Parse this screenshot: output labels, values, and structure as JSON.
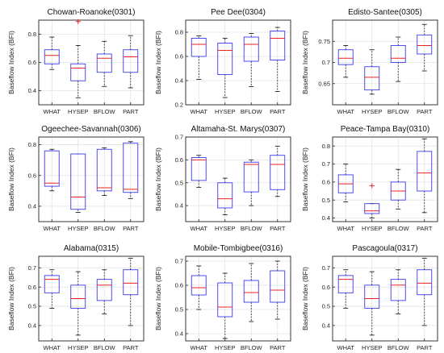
{
  "chart_data": [
    {
      "type": "box",
      "title": "Chowan-Roanoke(0301)",
      "ylabel": "Baseflow Index (BFI)",
      "categories": [
        "WHAT",
        "HYSEP",
        "BFLOW",
        "PART"
      ],
      "ylim": [
        0.3,
        0.9
      ],
      "yticks": [
        "0.4",
        "0.6",
        "0.8"
      ],
      "boxes": [
        {
          "min": 0.55,
          "q1": 0.59,
          "median": 0.65,
          "q3": 0.69,
          "max": 0.78,
          "outliers": []
        },
        {
          "min": 0.35,
          "q1": 0.47,
          "median": 0.56,
          "q3": 0.59,
          "max": 0.72,
          "outliers": [
            0.89
          ]
        },
        {
          "min": 0.43,
          "q1": 0.53,
          "median": 0.63,
          "q3": 0.66,
          "max": 0.75,
          "outliers": []
        },
        {
          "min": 0.42,
          "q1": 0.53,
          "median": 0.64,
          "q3": 0.69,
          "max": 0.79,
          "outliers": []
        }
      ]
    },
    {
      "type": "box",
      "title": "Pee Dee(0304)",
      "ylabel": "Baseflow Index (BFI)",
      "categories": [
        "WHAT",
        "HYSEP",
        "BFLOW",
        "PART"
      ],
      "ylim": [
        0.2,
        0.9
      ],
      "yticks": [
        "0.2",
        "0.4",
        "0.6",
        "0.8"
      ],
      "boxes": [
        {
          "min": 0.41,
          "q1": 0.6,
          "median": 0.7,
          "q3": 0.75,
          "max": 0.77,
          "outliers": []
        },
        {
          "min": 0.26,
          "q1": 0.45,
          "median": 0.65,
          "q3": 0.71,
          "max": 0.75,
          "outliers": []
        },
        {
          "min": 0.35,
          "q1": 0.56,
          "median": 0.7,
          "q3": 0.76,
          "max": 0.79,
          "outliers": []
        },
        {
          "min": 0.31,
          "q1": 0.57,
          "median": 0.75,
          "q3": 0.81,
          "max": 0.84,
          "outliers": []
        }
      ]
    },
    {
      "type": "box",
      "title": "Edisto-Santee(0305)",
      "ylabel": "Baseflow Index (BFI)",
      "categories": [
        "WHAT",
        "HYSEP",
        "BFLOW",
        "PART"
      ],
      "ylim": [
        0.6,
        0.8
      ],
      "yticks": [
        "0.65",
        "0.7",
        "0.75"
      ],
      "boxes": [
        {
          "min": 0.665,
          "q1": 0.695,
          "median": 0.71,
          "q3": 0.73,
          "max": 0.74,
          "outliers": []
        },
        {
          "min": 0.625,
          "q1": 0.635,
          "median": 0.665,
          "q3": 0.69,
          "max": 0.73,
          "outliers": []
        },
        {
          "min": 0.655,
          "q1": 0.7,
          "median": 0.71,
          "q3": 0.74,
          "max": 0.76,
          "outliers": []
        },
        {
          "min": 0.68,
          "q1": 0.72,
          "median": 0.74,
          "q3": 0.765,
          "max": 0.79,
          "outliers": []
        }
      ]
    },
    {
      "type": "box",
      "title": "Ogeechee-Savannah(0306)",
      "ylabel": "Baseflow Index (BFI)",
      "categories": [
        "WHAT",
        "HYSEP",
        "BFLOW",
        "PART"
      ],
      "ylim": [
        0.3,
        0.85
      ],
      "yticks": [
        "0.4",
        "0.6",
        "0.8"
      ],
      "boxes": [
        {
          "min": 0.5,
          "q1": 0.53,
          "median": 0.55,
          "q3": 0.76,
          "max": 0.77,
          "outliers": []
        },
        {
          "min": 0.36,
          "q1": 0.38,
          "median": 0.46,
          "q3": 0.74,
          "max": 0.74,
          "outliers": []
        },
        {
          "min": 0.47,
          "q1": 0.5,
          "median": 0.52,
          "q3": 0.77,
          "max": 0.78,
          "outliers": []
        },
        {
          "min": 0.45,
          "q1": 0.49,
          "median": 0.51,
          "q3": 0.81,
          "max": 0.82,
          "outliers": []
        }
      ]
    },
    {
      "type": "box",
      "title": "Altamaha-St. Marys(0307)",
      "ylabel": "Baseflow Index (BFI)",
      "categories": [
        "WHAT",
        "HYSEP",
        "BFLOW",
        "PART"
      ],
      "ylim": [
        0.33,
        0.7
      ],
      "yticks": [
        "0.4",
        "0.5",
        "0.6",
        "0.7"
      ],
      "boxes": [
        {
          "min": 0.48,
          "q1": 0.51,
          "median": 0.6,
          "q3": 0.61,
          "max": 0.62,
          "outliers": []
        },
        {
          "min": 0.36,
          "q1": 0.39,
          "median": 0.43,
          "q3": 0.5,
          "max": 0.52,
          "outliers": []
        },
        {
          "min": 0.4,
          "q1": 0.46,
          "median": 0.58,
          "q3": 0.59,
          "max": 0.6,
          "outliers": []
        },
        {
          "min": 0.44,
          "q1": 0.47,
          "median": 0.58,
          "q3": 0.62,
          "max": 0.66,
          "outliers": []
        }
      ]
    },
    {
      "type": "box",
      "title": "Peace-Tampa Bay(0310)",
      "ylabel": "Baseflow Index (BFI)",
      "categories": [
        "WHAT",
        "HYSEP",
        "BFLOW",
        "PART"
      ],
      "ylim": [
        0.38,
        0.85
      ],
      "yticks": [
        "0.4",
        "0.5",
        "0.6",
        "0.7",
        "0.8"
      ],
      "boxes": [
        {
          "min": 0.49,
          "q1": 0.54,
          "median": 0.59,
          "q3": 0.64,
          "max": 0.7,
          "outliers": []
        },
        {
          "min": 0.4,
          "q1": 0.425,
          "median": 0.44,
          "q3": 0.48,
          "max": 0.48,
          "outliers": [
            0.58
          ]
        },
        {
          "min": 0.45,
          "q1": 0.5,
          "median": 0.55,
          "q3": 0.6,
          "max": 0.67,
          "outliers": []
        },
        {
          "min": 0.43,
          "q1": 0.55,
          "median": 0.65,
          "q3": 0.77,
          "max": 0.84,
          "outliers": []
        }
      ]
    },
    {
      "type": "box",
      "title": "Alabama(0315)",
      "ylabel": "Baseflow Index (BFI)",
      "categories": [
        "WHAT",
        "HYSEP",
        "BFLOW",
        "PART"
      ],
      "ylim": [
        0.32,
        0.76
      ],
      "yticks": [
        "0.4",
        "0.5",
        "0.6",
        "0.7"
      ],
      "boxes": [
        {
          "min": 0.49,
          "q1": 0.57,
          "median": 0.64,
          "q3": 0.66,
          "max": 0.69,
          "outliers": []
        },
        {
          "min": 0.35,
          "q1": 0.49,
          "median": 0.54,
          "q3": 0.61,
          "max": 0.68,
          "outliers": []
        },
        {
          "min": 0.46,
          "q1": 0.53,
          "median": 0.61,
          "q3": 0.64,
          "max": 0.69,
          "outliers": []
        },
        {
          "min": 0.4,
          "q1": 0.56,
          "median": 0.62,
          "q3": 0.69,
          "max": 0.75,
          "outliers": []
        }
      ]
    },
    {
      "type": "box",
      "title": "Mobile-Tombigbee(0316)",
      "ylabel": "Baseflow Index (BFI)",
      "categories": [
        "WHAT",
        "HYSEP",
        "BFLOW",
        "PART"
      ],
      "ylim": [
        0.37,
        0.72
      ],
      "yticks": [
        "0.4",
        "0.5",
        "0.6",
        "0.7"
      ],
      "boxes": [
        {
          "min": 0.5,
          "q1": 0.56,
          "median": 0.59,
          "q3": 0.64,
          "max": 0.68,
          "outliers": []
        },
        {
          "min": 0.38,
          "q1": 0.47,
          "median": 0.51,
          "q3": 0.61,
          "max": 0.65,
          "outliers": []
        },
        {
          "min": 0.45,
          "q1": 0.53,
          "median": 0.57,
          "q3": 0.62,
          "max": 0.69,
          "outliers": []
        },
        {
          "min": 0.46,
          "q1": 0.53,
          "median": 0.58,
          "q3": 0.66,
          "max": 0.7,
          "outliers": []
        }
      ]
    },
    {
      "type": "box",
      "title": "Pascagoula(0317)",
      "ylabel": "Baseflow Index (BFI)",
      "categories": [
        "WHAT",
        "HYSEP",
        "BFLOW",
        "PART"
      ],
      "ylim": [
        0.32,
        0.76
      ],
      "yticks": [
        "0.4",
        "0.5",
        "0.6",
        "0.7"
      ],
      "boxes": [
        {
          "min": 0.49,
          "q1": 0.57,
          "median": 0.64,
          "q3": 0.66,
          "max": 0.69,
          "outliers": []
        },
        {
          "min": 0.35,
          "q1": 0.49,
          "median": 0.54,
          "q3": 0.61,
          "max": 0.68,
          "outliers": []
        },
        {
          "min": 0.46,
          "q1": 0.53,
          "median": 0.61,
          "q3": 0.64,
          "max": 0.69,
          "outliers": []
        },
        {
          "min": 0.4,
          "q1": 0.56,
          "median": 0.62,
          "q3": 0.69,
          "max": 0.75,
          "outliers": []
        }
      ]
    }
  ],
  "colors": {
    "box": "#3a3aee",
    "median": "#ee2222",
    "outlier": "#ee2222",
    "whisker": "#222222",
    "grid": "#e3e3e3",
    "axis": "#222222"
  }
}
